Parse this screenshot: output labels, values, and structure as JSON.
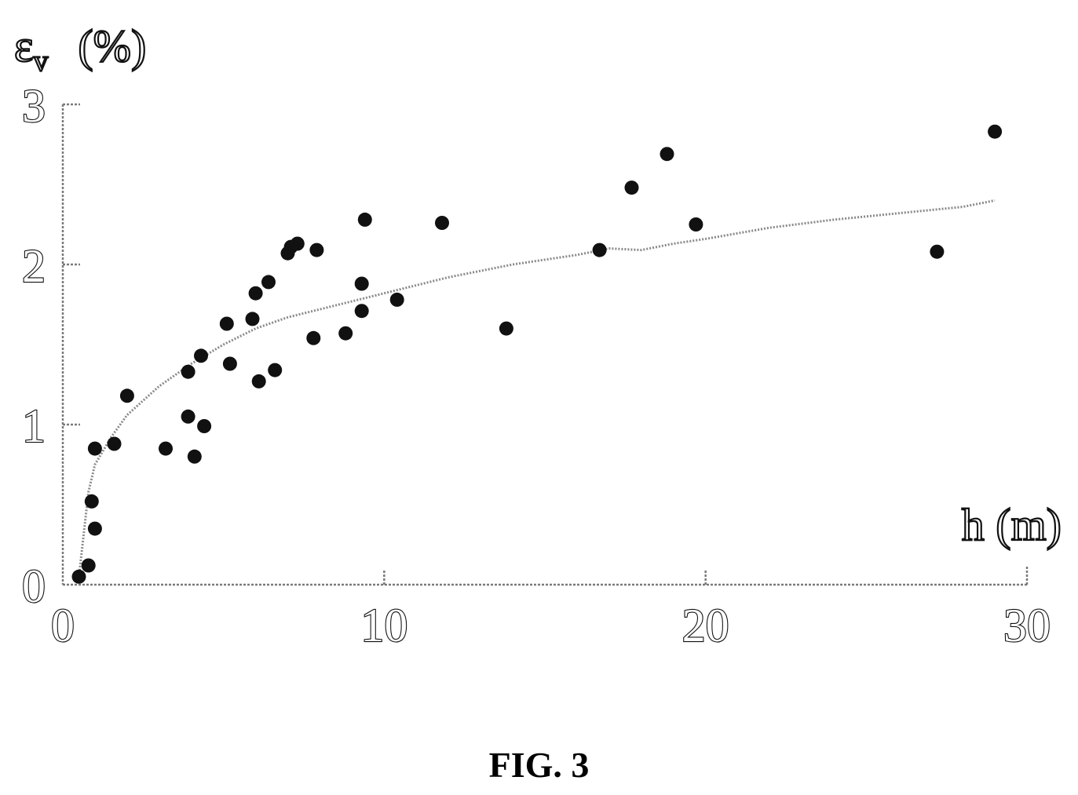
{
  "figure": {
    "caption": "FIG. 3"
  },
  "chart_data": {
    "type": "scatter",
    "title": "",
    "ylabel_main": "ε",
    "ylabel_sub": "v",
    "ylabel_unit": "(%)",
    "xlabel": "h (m)",
    "xlim": [
      0,
      30
    ],
    "ylim": [
      0,
      3
    ],
    "x_ticks": [
      {
        "value": 0,
        "label": "0"
      },
      {
        "value": 10,
        "label": "10"
      },
      {
        "value": 20,
        "label": "20"
      },
      {
        "value": 30,
        "label": "30"
      }
    ],
    "y_ticks": [
      {
        "value": 0,
        "label": "0"
      },
      {
        "value": 1,
        "label": "1"
      },
      {
        "value": 2,
        "label": "2"
      },
      {
        "value": 3,
        "label": "3"
      }
    ],
    "grid": false,
    "series": [
      {
        "kind": "points",
        "x": [
          0.5,
          0.8,
          0.9,
          1.0,
          1.0,
          1.6,
          2.0,
          3.2,
          3.9,
          3.9,
          4.1,
          4.3,
          4.4,
          5.1,
          5.2,
          5.9,
          6.0,
          6.1,
          6.4,
          6.6,
          7.0,
          7.1,
          7.3,
          7.8,
          7.9,
          8.8,
          9.3,
          9.3,
          9.4,
          10.4,
          11.8,
          13.8,
          16.7,
          17.7,
          18.8,
          19.7,
          27.2,
          29.0
        ],
        "y": [
          0.05,
          0.12,
          0.52,
          0.35,
          0.85,
          0.88,
          1.18,
          0.85,
          1.05,
          1.33,
          0.8,
          1.43,
          0.99,
          1.63,
          1.38,
          1.66,
          1.82,
          1.27,
          1.89,
          1.34,
          2.07,
          2.11,
          2.13,
          1.54,
          2.09,
          1.57,
          1.88,
          1.71,
          2.28,
          1.78,
          2.26,
          1.6,
          2.09,
          2.48,
          2.69,
          2.25,
          2.08,
          2.83
        ]
      },
      {
        "kind": "fit-line",
        "x": [
          0.5,
          0.8,
          1.0,
          1.5,
          2.0,
          3.0,
          4.0,
          5.0,
          6.0,
          7.0,
          8.0,
          9.0,
          10.0,
          12.0,
          14.0,
          16.0,
          17.0,
          18.0,
          19.0,
          20.0,
          22.0,
          24.0,
          26.0,
          28.0,
          29.0
        ],
        "y": [
          0.05,
          0.58,
          0.75,
          0.92,
          1.06,
          1.24,
          1.38,
          1.5,
          1.6,
          1.67,
          1.72,
          1.77,
          1.82,
          1.92,
          2.0,
          2.06,
          2.1,
          2.09,
          2.13,
          2.16,
          2.23,
          2.28,
          2.32,
          2.36,
          2.4
        ]
      }
    ]
  }
}
